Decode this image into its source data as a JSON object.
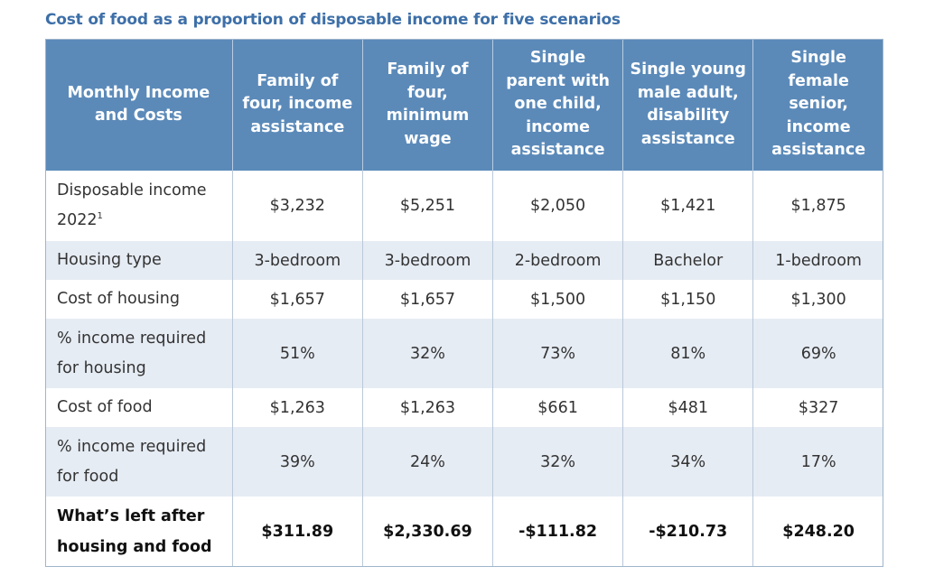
{
  "title": "Cost of food as a proportion of disposable income for five scenarios",
  "table": {
    "headers": [
      "Monthly Income and Costs",
      "Family of four, income assistance",
      "Family of four, minimum wage",
      "Single parent with one child, income assistance",
      "Single young male adult, disability assistance",
      "Single female senior, income assistance"
    ],
    "rows": [
      {
        "label": "Disposable income 2022",
        "footnote": "1",
        "values": [
          "$3,232",
          "$5,251",
          "$2,050",
          "$1,421",
          "$1,875"
        ]
      },
      {
        "label": "Housing type",
        "values": [
          "3-bedroom",
          "3-bedroom",
          "2-bedroom",
          "Bachelor",
          "1-bedroom"
        ]
      },
      {
        "label": "Cost of housing",
        "values": [
          "$1,657",
          "$1,657",
          "$1,500",
          "$1,150",
          "$1,300"
        ]
      },
      {
        "label": "% income required for housing",
        "values": [
          "51%",
          "32%",
          "73%",
          "81%",
          "69%"
        ]
      },
      {
        "label": "Cost of food",
        "values": [
          "$1,263",
          "$1,263",
          "$661",
          "$481",
          "$327"
        ]
      },
      {
        "label": "% income required for food",
        "values": [
          "39%",
          "24%",
          "32%",
          "34%",
          "17%"
        ]
      },
      {
        "label": "What’s left after housing and food",
        "values": [
          "$311.89",
          "$2,330.69",
          "-$111.82",
          "-$210.73",
          "$248.20"
        ]
      }
    ]
  },
  "colors": {
    "title": "#3d6fa8",
    "header_bg": "#5b8ab9",
    "row_shade": "#e6ecf4",
    "negative": "#e0202a"
  }
}
